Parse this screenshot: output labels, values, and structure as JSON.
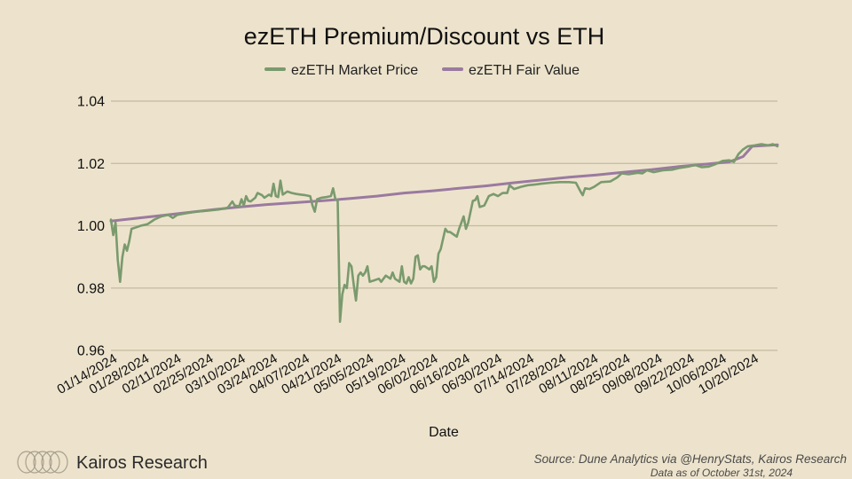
{
  "chart_data": {
    "type": "line",
    "title": "ezETH Premium/Discount vs ETH",
    "xlabel": "Date",
    "ylabel": "",
    "ylim": [
      0.96,
      1.04
    ],
    "yticks": [
      "0.96",
      "0.98",
      "1.00",
      "1.02",
      "1.04"
    ],
    "grid": true,
    "legend_position": "top",
    "xlim": [
      "2024-01-14",
      "2024-10-31"
    ],
    "xtick_labels": [
      "01/14/2024",
      "01/28/2024",
      "02/11/2024",
      "02/25/2024",
      "03/10/2024",
      "03/24/2024",
      "04/07/2024",
      "04/21/2024",
      "05/05/2024",
      "05/19/2024",
      "06/02/2024",
      "06/16/2024",
      "06/30/2024",
      "07/14/2024",
      "07/28/2024",
      "08/11/2024",
      "08/25/2024",
      "09/08/2024",
      "09/22/2024",
      "10/06/2024",
      "10/20/2024"
    ],
    "xtick_dates": [
      "2024-01-14",
      "2024-01-28",
      "2024-02-11",
      "2024-02-25",
      "2024-03-10",
      "2024-03-24",
      "2024-04-07",
      "2024-04-21",
      "2024-05-05",
      "2024-05-19",
      "2024-06-02",
      "2024-06-16",
      "2024-06-30",
      "2024-07-14",
      "2024-07-28",
      "2024-08-11",
      "2024-08-25",
      "2024-09-08",
      "2024-09-22",
      "2024-10-06",
      "2024-10-20"
    ],
    "series": [
      {
        "name": "ezETH Market Price",
        "color": "#7a9a6e",
        "points": [
          [
            "2024-01-14",
            1.002
          ],
          [
            "2024-01-15",
            0.997
          ],
          [
            "2024-01-16",
            1.001
          ],
          [
            "2024-01-17",
            0.989
          ],
          [
            "2024-01-18",
            0.982
          ],
          [
            "2024-01-19",
            0.99
          ],
          [
            "2024-01-20",
            0.994
          ],
          [
            "2024-01-21",
            0.992
          ],
          [
            "2024-01-22",
            0.995
          ],
          [
            "2024-01-23",
            0.999
          ],
          [
            "2024-01-25",
            0.9995
          ],
          [
            "2024-01-27",
            1.0
          ],
          [
            "2024-01-30",
            1.0005
          ],
          [
            "2024-02-02",
            1.002
          ],
          [
            "2024-02-05",
            1.003
          ],
          [
            "2024-02-08",
            1.0035
          ],
          [
            "2024-02-10",
            1.0025
          ],
          [
            "2024-02-12",
            1.0035
          ],
          [
            "2024-02-16",
            1.004
          ],
          [
            "2024-02-20",
            1.0045
          ],
          [
            "2024-02-25",
            1.0048
          ],
          [
            "2024-03-01",
            1.0052
          ],
          [
            "2024-03-05",
            1.0058
          ],
          [
            "2024-03-07",
            1.0078
          ],
          [
            "2024-03-08",
            1.0065
          ],
          [
            "2024-03-10",
            1.0062
          ],
          [
            "2024-03-11",
            1.0085
          ],
          [
            "2024-03-12",
            1.0065
          ],
          [
            "2024-03-13",
            1.0095
          ],
          [
            "2024-03-14",
            1.008
          ],
          [
            "2024-03-15",
            1.0078
          ],
          [
            "2024-03-17",
            1.009
          ],
          [
            "2024-03-18",
            1.0105
          ],
          [
            "2024-03-20",
            1.0098
          ],
          [
            "2024-03-21",
            1.009
          ],
          [
            "2024-03-23",
            1.01
          ],
          [
            "2024-03-24",
            1.0095
          ],
          [
            "2024-03-25",
            1.0135
          ],
          [
            "2024-03-26",
            1.0095
          ],
          [
            "2024-03-27",
            1.0092
          ],
          [
            "2024-03-28",
            1.0145
          ],
          [
            "2024-03-29",
            1.01
          ],
          [
            "2024-03-31",
            1.011
          ],
          [
            "2024-04-02",
            1.0105
          ],
          [
            "2024-04-04",
            1.0102
          ],
          [
            "2024-04-06",
            1.01
          ],
          [
            "2024-04-08",
            1.0098
          ],
          [
            "2024-04-10",
            1.0095
          ],
          [
            "2024-04-11",
            1.0065
          ],
          [
            "2024-04-12",
            1.0045
          ],
          [
            "2024-04-13",
            1.0085
          ],
          [
            "2024-04-15",
            1.009
          ],
          [
            "2024-04-17",
            1.0092
          ],
          [
            "2024-04-19",
            1.0095
          ],
          [
            "2024-04-20",
            1.012
          ],
          [
            "2024-04-21",
            1.0085
          ],
          [
            "2024-04-22",
            1.008
          ],
          [
            "2024-04-23",
            0.9692
          ],
          [
            "2024-04-24",
            0.978
          ],
          [
            "2024-04-25",
            0.981
          ],
          [
            "2024-04-26",
            0.98
          ],
          [
            "2024-04-27",
            0.988
          ],
          [
            "2024-04-28",
            0.987
          ],
          [
            "2024-04-29",
            0.981
          ],
          [
            "2024-04-30",
            0.976
          ],
          [
            "2024-05-01",
            0.984
          ],
          [
            "2024-05-02",
            0.985
          ],
          [
            "2024-05-03",
            0.984
          ],
          [
            "2024-05-04",
            0.985
          ],
          [
            "2024-05-05",
            0.987
          ],
          [
            "2024-05-06",
            0.982
          ],
          [
            "2024-05-08",
            0.9825
          ],
          [
            "2024-05-10",
            0.983
          ],
          [
            "2024-05-11",
            0.982
          ],
          [
            "2024-05-13",
            0.984
          ],
          [
            "2024-05-15",
            0.983
          ],
          [
            "2024-05-16",
            0.985
          ],
          [
            "2024-05-17",
            0.983
          ],
          [
            "2024-05-19",
            0.982
          ],
          [
            "2024-05-20",
            0.987
          ],
          [
            "2024-05-21",
            0.982
          ],
          [
            "2024-05-22",
            0.9815
          ],
          [
            "2024-05-23",
            0.9835
          ],
          [
            "2024-05-24",
            0.9815
          ],
          [
            "2024-05-25",
            0.983
          ],
          [
            "2024-05-26",
            0.99
          ],
          [
            "2024-05-27",
            0.9905
          ],
          [
            "2024-05-28",
            0.986
          ],
          [
            "2024-05-29",
            0.987
          ],
          [
            "2024-05-30",
            0.987
          ],
          [
            "2024-06-01",
            0.986
          ],
          [
            "2024-06-02",
            0.987
          ],
          [
            "2024-06-03",
            0.982
          ],
          [
            "2024-06-04",
            0.9835
          ],
          [
            "2024-06-05",
            0.991
          ],
          [
            "2024-06-06",
            0.9925
          ],
          [
            "2024-06-08",
            0.999
          ],
          [
            "2024-06-09",
            0.998
          ],
          [
            "2024-06-10",
            0.998
          ],
          [
            "2024-06-12",
            0.997
          ],
          [
            "2024-06-13",
            0.9965
          ],
          [
            "2024-06-14",
            0.999
          ],
          [
            "2024-06-16",
            1.003
          ],
          [
            "2024-06-17",
            0.999
          ],
          [
            "2024-06-18",
            1.001
          ],
          [
            "2024-06-20",
            1.008
          ],
          [
            "2024-06-21",
            1.0082
          ],
          [
            "2024-06-22",
            1.0095
          ],
          [
            "2024-06-23",
            1.006
          ],
          [
            "2024-06-25",
            1.0065
          ],
          [
            "2024-06-27",
            1.0095
          ],
          [
            "2024-06-29",
            1.0102
          ],
          [
            "2024-07-01",
            1.0095
          ],
          [
            "2024-07-03",
            1.0105
          ],
          [
            "2024-07-05",
            1.0105
          ],
          [
            "2024-07-06",
            1.013
          ],
          [
            "2024-07-08",
            1.0118
          ],
          [
            "2024-07-11",
            1.0125
          ],
          [
            "2024-07-14",
            1.013
          ],
          [
            "2024-07-17",
            1.0132
          ],
          [
            "2024-07-20",
            1.0135
          ],
          [
            "2024-07-24",
            1.0138
          ],
          [
            "2024-07-28",
            1.014
          ],
          [
            "2024-08-01",
            1.014
          ],
          [
            "2024-08-04",
            1.0138
          ],
          [
            "2024-08-06",
            1.011
          ],
          [
            "2024-08-07",
            1.0098
          ],
          [
            "2024-08-08",
            1.012
          ],
          [
            "2024-08-10",
            1.0118
          ],
          [
            "2024-08-12",
            1.0125
          ],
          [
            "2024-08-15",
            1.014
          ],
          [
            "2024-08-19",
            1.0142
          ],
          [
            "2024-08-22",
            1.0155
          ],
          [
            "2024-08-24",
            1.0168
          ],
          [
            "2024-08-27",
            1.0165
          ],
          [
            "2024-08-31",
            1.017
          ],
          [
            "2024-09-02",
            1.0168
          ],
          [
            "2024-09-04",
            1.0178
          ],
          [
            "2024-09-07",
            1.0172
          ],
          [
            "2024-09-11",
            1.0178
          ],
          [
            "2024-09-15",
            1.018
          ],
          [
            "2024-09-18",
            1.0185
          ],
          [
            "2024-09-22",
            1.019
          ],
          [
            "2024-09-25",
            1.0195
          ],
          [
            "2024-09-28",
            1.0188
          ],
          [
            "2024-10-01",
            1.019
          ],
          [
            "2024-10-04",
            1.0198
          ],
          [
            "2024-10-07",
            1.0208
          ],
          [
            "2024-10-10",
            1.021
          ],
          [
            "2024-10-12",
            1.0205
          ],
          [
            "2024-10-14",
            1.023
          ],
          [
            "2024-10-16",
            1.0245
          ],
          [
            "2024-10-18",
            1.0255
          ],
          [
            "2024-10-21",
            1.0258
          ],
          [
            "2024-10-24",
            1.0262
          ],
          [
            "2024-10-27",
            1.0258
          ],
          [
            "2024-10-29",
            1.0262
          ],
          [
            "2024-10-31",
            1.0255
          ]
        ]
      },
      {
        "name": "ezETH Fair Value",
        "color": "#9a7aa0",
        "points": [
          [
            "2024-01-14",
            1.0015
          ],
          [
            "2024-01-24",
            1.0023
          ],
          [
            "2024-02-04",
            1.0032
          ],
          [
            "2024-02-16",
            1.0042
          ],
          [
            "2024-02-28",
            1.0052
          ],
          [
            "2024-03-10",
            1.006
          ],
          [
            "2024-03-22",
            1.0068
          ],
          [
            "2024-04-03",
            1.0074
          ],
          [
            "2024-04-15",
            1.008
          ],
          [
            "2024-04-27",
            1.0087
          ],
          [
            "2024-05-09",
            1.0095
          ],
          [
            "2024-05-21",
            1.0105
          ],
          [
            "2024-06-02",
            1.0112
          ],
          [
            "2024-06-14",
            1.012
          ],
          [
            "2024-06-26",
            1.0128
          ],
          [
            "2024-07-08",
            1.0138
          ],
          [
            "2024-07-20",
            1.0147
          ],
          [
            "2024-08-01",
            1.0156
          ],
          [
            "2024-08-13",
            1.0163
          ],
          [
            "2024-08-25",
            1.0172
          ],
          [
            "2024-09-06",
            1.018
          ],
          [
            "2024-09-18",
            1.019
          ],
          [
            "2024-09-30",
            1.0198
          ],
          [
            "2024-10-10",
            1.0205
          ],
          [
            "2024-10-16",
            1.0222
          ],
          [
            "2024-10-20",
            1.0255
          ],
          [
            "2024-10-31",
            1.026
          ]
        ]
      }
    ]
  },
  "footer": {
    "brand": "Kairos Research",
    "source": "Source: Dune Analytics via @HenryStats, Kairos Research",
    "as_of": "Data as of October 31st, 2024"
  }
}
